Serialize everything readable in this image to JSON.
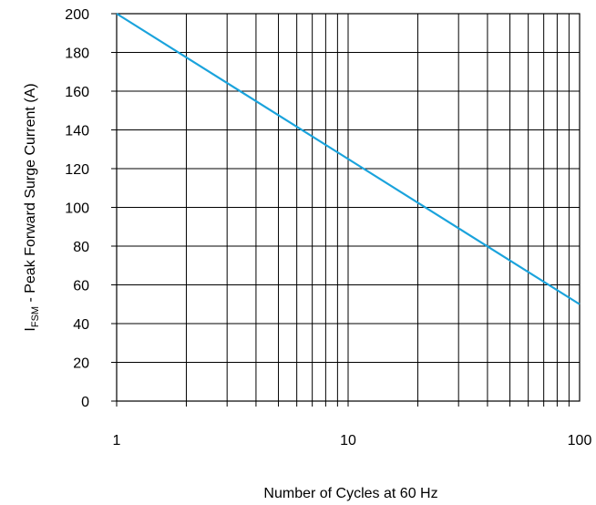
{
  "chart_data": {
    "type": "line",
    "x_scale": "log",
    "y_scale": "linear",
    "xlim": [
      1,
      100
    ],
    "ylim": [
      0,
      200
    ],
    "x_ticks": [
      1,
      10,
      100
    ],
    "x_tick_labels": [
      "1",
      "10",
      "100"
    ],
    "y_ticks": [
      0,
      20,
      40,
      60,
      80,
      100,
      120,
      140,
      160,
      180,
      200
    ],
    "y_tick_labels": [
      "0",
      "20",
      "40",
      "60",
      "80",
      "100",
      "120",
      "140",
      "160",
      "180",
      "200"
    ],
    "grid": true,
    "xlabel": "Number of Cycles at 60 Hz",
    "ylabel_prefix": "I",
    "ylabel_subscript": "FSM",
    "ylabel_suffix": " - Peak Forward Surge Current (A)",
    "series": [
      {
        "color": "#1aa3dc",
        "x": [
          1,
          100
        ],
        "y": [
          200,
          50
        ]
      }
    ]
  }
}
